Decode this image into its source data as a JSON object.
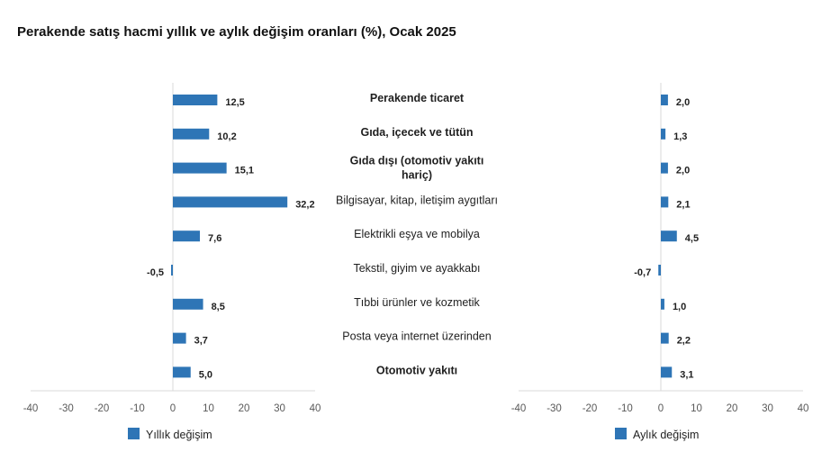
{
  "title": "Perakende satış hacmi yıllık ve aylık değişim oranları (%), Ocak 2025",
  "colors": {
    "bar": "#2e75b6",
    "axis": "#d9d9d9",
    "label": "#1f1f1f",
    "tick": "#595959"
  },
  "chart_data": [
    {
      "type": "bar",
      "orientation": "horizontal",
      "legend": "Yıllık değişim",
      "legend_position": "bottom-left",
      "xlim": [
        -40,
        40
      ],
      "ticks": [
        "-40",
        "-30",
        "-20",
        "-10",
        "0",
        "10",
        "20",
        "30",
        "40"
      ],
      "values": [
        12.5,
        10.2,
        15.1,
        32.2,
        7.6,
        -0.5,
        8.5,
        3.7,
        5.0
      ],
      "value_labels": [
        "12,5",
        "10,2",
        "15,1",
        "32,2",
        "7,6",
        "-0,5",
        "8,5",
        "3,7",
        "5,0"
      ],
      "grid": false
    },
    {
      "type": "bar",
      "orientation": "horizontal",
      "legend": "Aylık değişim",
      "legend_position": "bottom-center",
      "xlim": [
        -40,
        40
      ],
      "ticks": [
        "-40",
        "-30",
        "-20",
        "-10",
        "0",
        "10",
        "20",
        "30",
        "40"
      ],
      "values": [
        2.0,
        1.3,
        2.0,
        2.1,
        4.5,
        -0.7,
        1.0,
        2.2,
        3.1
      ],
      "value_labels": [
        "2,0",
        "1,3",
        "2,0",
        "2,1",
        "4,5",
        "-0,7",
        "1,0",
        "2,2",
        "3,1"
      ],
      "grid": false
    }
  ],
  "categories": [
    {
      "lines": [
        "Perakende ticaret"
      ],
      "bold": true
    },
    {
      "lines": [
        "Gıda, içecek ve tütün"
      ],
      "bold": true
    },
    {
      "lines": [
        "Gıda dışı (otomotiv yakıtı",
        "hariç)"
      ],
      "bold": true
    },
    {
      "lines": [
        "Bilgisayar, kitap, iletişim aygıtları"
      ],
      "bold": false
    },
    {
      "lines": [
        "Elektrikli eşya ve mobilya"
      ],
      "bold": false
    },
    {
      "lines": [
        "Tekstil, giyim ve ayakkabı"
      ],
      "bold": false
    },
    {
      "lines": [
        "Tıbbi ürünler ve kozmetik"
      ],
      "bold": false
    },
    {
      "lines": [
        "Posta veya internet üzerinden"
      ],
      "bold": false
    },
    {
      "lines": [
        "Otomotiv yakıtı"
      ],
      "bold": true
    }
  ]
}
